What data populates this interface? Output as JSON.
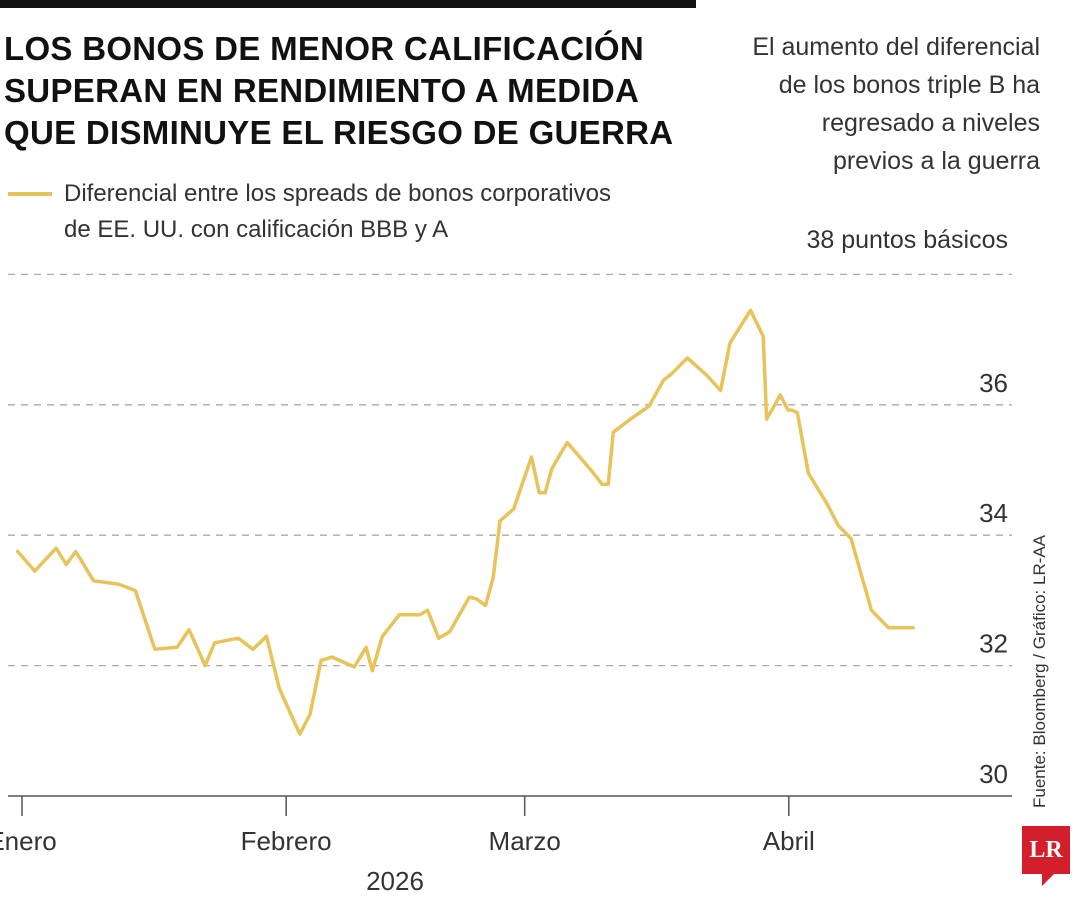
{
  "header": {
    "title_lines": [
      "LOS BONOS DE MENOR CALIFICACIÓN",
      "SUPERAN EN RENDIMIENTO A MEDIDA",
      "QUE DISMINUYE EL RIESGO DE GUERRA"
    ],
    "subtitle_lines": [
      "El aumento del diferencial",
      "de los bonos triple B ha",
      "regresado a niveles",
      "previos a la guerra"
    ]
  },
  "legend": {
    "label_lines": [
      "Diferencial entre los spreads de bonos corporativos",
      "de EE. UU. con calificación BBB y A"
    ]
  },
  "unit_label": "38 puntos básicos",
  "source": "Fuente: Bloomberg / Gráfico: LR-AA",
  "logo_text": "LR",
  "colors": {
    "line": "#e8c35a",
    "grid": "#aaaaaa",
    "axis": "#555555",
    "logo": "#d21f2b"
  },
  "chart_data": {
    "type": "line",
    "title": "LOS BONOS DE MENOR CALIFICACIÓN SUPERAN EN RENDIMIENTO A MEDIDA QUE DISMINUYE EL RIESGO DE GUERRA",
    "xlabel": "2026",
    "ylabel": "puntos básicos",
    "ylim": [
      30,
      38
    ],
    "yticks": [
      30,
      32,
      34,
      36,
      38
    ],
    "grid": true,
    "x_ticks": [
      {
        "label": "Enero",
        "day": 0
      },
      {
        "label": "Febrero",
        "day": 31
      },
      {
        "label": "Marzo",
        "day": 59
      },
      {
        "label": "Abril",
        "day": 90
      }
    ],
    "year_label": "2026",
    "x_range": [
      -1,
      112
    ],
    "series": [
      {
        "name": "Diferencial entre los spreads de bonos corporativos de EE. UU. con calificación BBB y A",
        "x": [
          -0.5,
          1.5,
          4,
          5.2,
          6.3,
          8.4,
          11.3,
          13.3,
          15.6,
          18.2,
          19.6,
          21.5,
          22.6,
          25.4,
          27.1,
          28.7,
          30.2,
          32.6,
          33.8,
          35.1,
          36.4,
          39,
          40.4,
          41.1,
          42.3,
          44.3,
          46.7,
          47.6,
          48.9,
          50.2,
          52.5,
          53.4,
          54.4,
          55.3,
          56.1,
          57.7,
          59.8,
          60.7,
          61.4,
          62.2,
          63.2,
          64,
          66.9,
          68.1,
          68.8,
          69.4,
          71.1,
          73.6,
          75.3,
          76.2,
          78.1,
          80.4,
          82,
          83.1,
          85.5,
          87,
          87.4,
          89,
          89.9,
          90.3,
          91,
          92.3,
          94.5,
          95.8,
          97.3,
          99.7,
          101.7,
          103.6,
          104.6
        ],
        "values": [
          33.75,
          33.45,
          33.8,
          33.55,
          33.75,
          33.3,
          33.25,
          33.15,
          32.25,
          32.28,
          32.55,
          32.0,
          32.35,
          32.42,
          32.25,
          32.45,
          31.65,
          30.95,
          31.25,
          32.08,
          32.13,
          31.98,
          32.28,
          31.92,
          32.45,
          32.78,
          32.78,
          32.85,
          32.42,
          32.52,
          33.05,
          33.02,
          32.92,
          33.35,
          34.22,
          34.4,
          35.2,
          34.65,
          34.65,
          35.02,
          35.25,
          35.42,
          34.98,
          34.78,
          34.78,
          35.58,
          35.75,
          35.98,
          36.38,
          36.47,
          36.72,
          36.45,
          36.22,
          36.95,
          37.45,
          37.05,
          35.78,
          36.15,
          35.92,
          35.92,
          35.88,
          34.95,
          34.48,
          34.15,
          33.95,
          32.85,
          32.58,
          32.58,
          32.58
        ]
      }
    ]
  }
}
